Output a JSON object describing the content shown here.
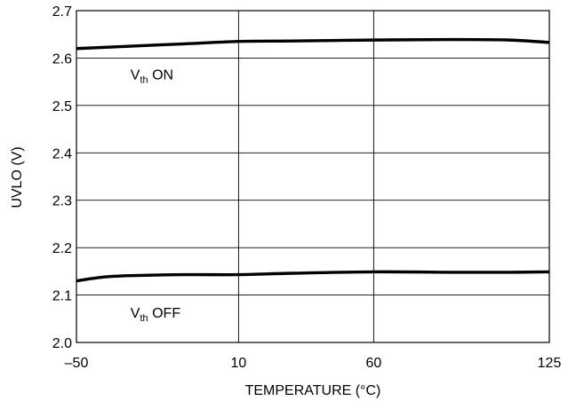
{
  "chart_data": {
    "type": "line",
    "title": "",
    "xlabel": "TEMPERATURE (°C)",
    "ylabel": "UVLO (V)",
    "xlim": [
      -50,
      125
    ],
    "ylim": [
      2.0,
      2.7
    ],
    "xticks": [
      -50,
      10,
      60,
      125
    ],
    "xtick_labels": [
      "–50",
      "10",
      "60",
      "125"
    ],
    "yticks": [
      2.0,
      2.1,
      2.2,
      2.3,
      2.4,
      2.5,
      2.6,
      2.7
    ],
    "ytick_labels": [
      "2.0",
      "2.1",
      "2.2",
      "2.3",
      "2.4",
      "2.5",
      "2.6",
      "2.7"
    ],
    "grid": true,
    "legend": "none",
    "series": [
      {
        "x": [
          -50,
          -30,
          -10,
          10,
          30,
          60,
          90,
          110,
          125
        ],
        "values": [
          2.62,
          2.625,
          2.63,
          2.635,
          2.636,
          2.638,
          2.639,
          2.638,
          2.633
        ]
      },
      {
        "x": [
          -50,
          -40,
          -30,
          -10,
          10,
          30,
          60,
          90,
          110,
          125
        ],
        "values": [
          2.13,
          2.138,
          2.141,
          2.143,
          2.143,
          2.146,
          2.149,
          2.148,
          2.148,
          2.149
        ]
      }
    ],
    "annotations": [
      {
        "main": "V",
        "sub": "th",
        "rest": " ON",
        "x": -30,
        "y": 2.555
      },
      {
        "main": "V",
        "sub": "th",
        "rest": " OFF",
        "x": -30,
        "y": 2.052
      }
    ],
    "line_color": "#000000",
    "grid_color": "#000000"
  }
}
